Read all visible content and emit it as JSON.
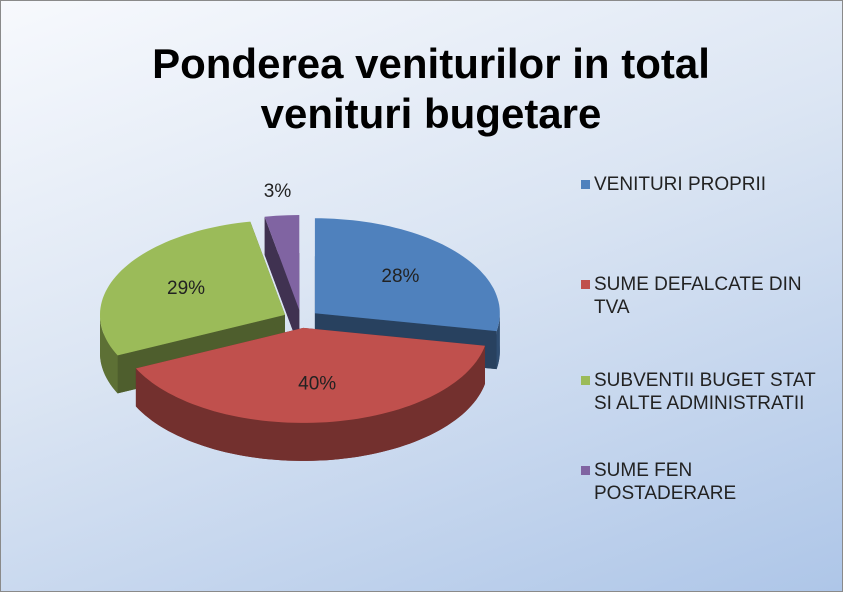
{
  "chart_data": {
    "type": "pie3d",
    "title": "Ponderea veniturilor in total venituri bugetare",
    "categories": [
      "VENITURI PROPRII",
      "SUME DEFALCATE DIN TVA",
      "SUBVENTII BUGET STAT SI ALTE ADMINISTRATII",
      "SUME FEN POSTADERARE"
    ],
    "values": [
      28,
      40,
      29,
      3
    ],
    "value_labels": [
      "28%",
      "40%",
      "29%",
      "3%"
    ],
    "colors": [
      "#4f81bd",
      "#c0504d",
      "#9bbb59",
      "#8064a2"
    ],
    "legend": "right"
  }
}
